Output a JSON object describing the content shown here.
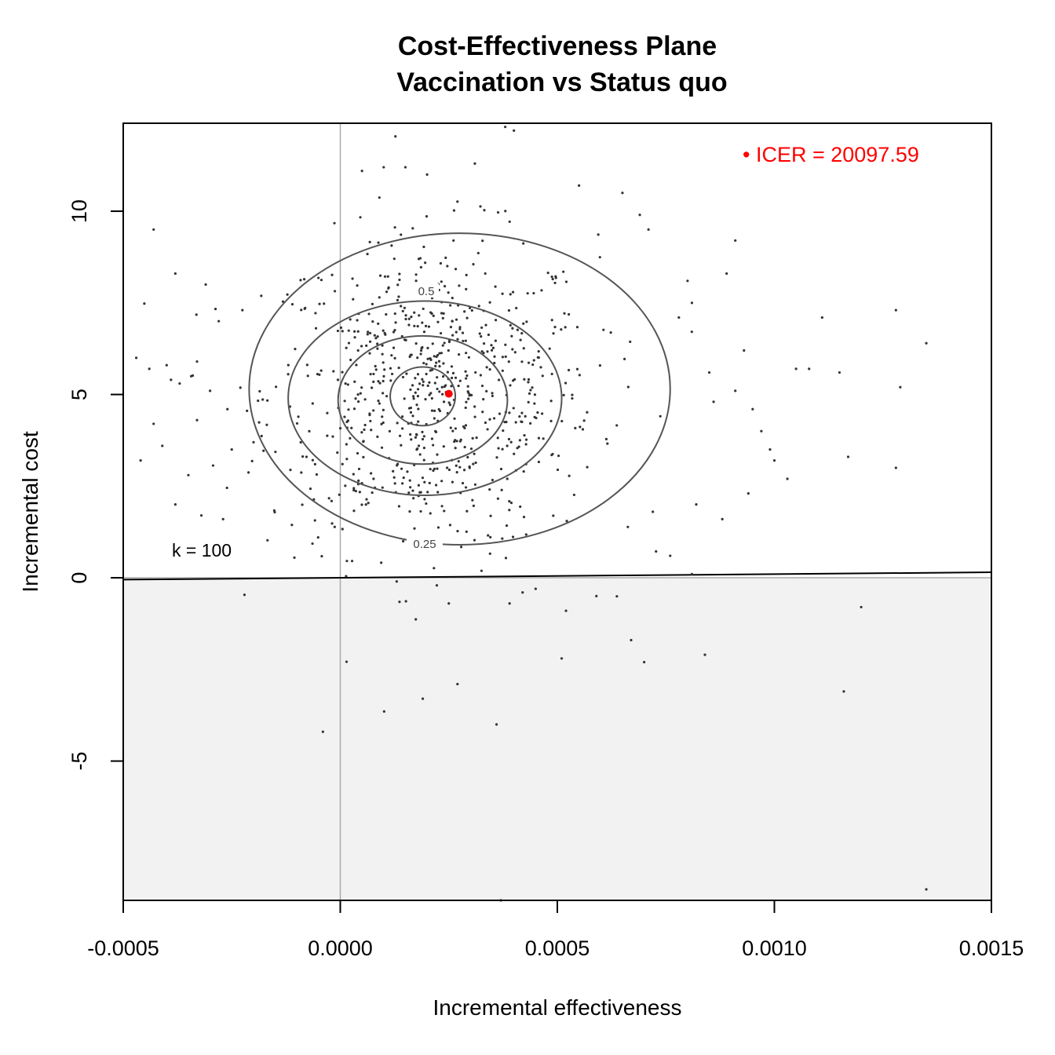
{
  "chart_data": {
    "type": "scatter",
    "title": "Cost-Effectiveness Plane",
    "subtitle": "Vaccination vs Status quo",
    "xlabel": "Incremental effectiveness",
    "ylabel": "Incremental cost",
    "xlim": [
      -0.0005,
      0.0015
    ],
    "ylim": [
      -8.8,
      12.4
    ],
    "x_ticks": [
      -0.0005,
      0.0,
      0.0005,
      0.001,
      0.0015
    ],
    "x_tick_labels": [
      "-0.0005",
      "0.0000",
      "0.0005",
      "0.0010",
      "0.0015"
    ],
    "y_ticks": [
      -5,
      0,
      5,
      10
    ],
    "y_tick_labels": [
      "-5",
      "0",
      "5",
      "10"
    ],
    "icer_label": "• ICER = 20097.59",
    "icer_point": {
      "x": 0.00025,
      "y": 5.02
    },
    "willingness_to_pay_label": "k = 100",
    "willingness_to_pay_line": {
      "slope": 100,
      "intercept": 0
    },
    "contour_labels": [
      "0.5",
      "0.25"
    ],
    "contours": [
      {
        "level": "inner",
        "cx": 0.00019,
        "cy": 4.95,
        "rx": 7.5e-05,
        "ry": 0.8
      },
      {
        "level": "0.5_inner",
        "cx": 0.00019,
        "cy": 4.85,
        "rx": 0.000195,
        "ry": 1.75
      },
      {
        "level": "0.5",
        "cx": 0.000195,
        "cy": 4.9,
        "rx": 0.000315,
        "ry": 2.65
      },
      {
        "level": "0.25",
        "cx": 0.000275,
        "cy": 5.15,
        "rx": 0.000485,
        "ry": 4.25
      }
    ],
    "shaded_region": "cost below 0",
    "reference_lines": {
      "x": 0.0,
      "y": 0.0
    },
    "point_color": "#333333",
    "icer_color": "#ff0000",
    "line_color": "#555555",
    "shade_color": "#f2f2f2",
    "grid": false,
    "outlier_points": [
      {
        "x": -0.00047,
        "y": 6.0
      },
      {
        "x": -0.00046,
        "y": 3.2
      },
      {
        "x": -0.00043,
        "y": 9.5
      },
      {
        "x": -0.00044,
        "y": 5.7
      },
      {
        "x": -0.00043,
        "y": 4.2
      },
      {
        "x": -0.00041,
        "y": 3.6
      },
      {
        "x": -0.0004,
        "y": 5.8
      },
      {
        "x": -0.00039,
        "y": 5.4
      },
      {
        "x": -0.00038,
        "y": 8.3
      },
      {
        "x": -0.00038,
        "y": 2.0
      },
      {
        "x": -0.00037,
        "y": 5.3
      },
      {
        "x": -0.00035,
        "y": 2.8
      },
      {
        "x": -0.00033,
        "y": 5.9
      },
      {
        "x": -0.00033,
        "y": 4.3
      },
      {
        "x": -0.00032,
        "y": 1.7
      },
      {
        "x": -0.00031,
        "y": 8.0
      },
      {
        "x": -0.0003,
        "y": 5.1
      },
      {
        "x": -0.00028,
        "y": 7.0
      },
      {
        "x": -0.00027,
        "y": 1.6
      },
      {
        "x": -0.00026,
        "y": 4.6
      },
      {
        "x": -0.00025,
        "y": 3.5
      },
      {
        "x": 5e-05,
        "y": 11.1
      },
      {
        "x": 0.0001,
        "y": 11.2
      },
      {
        "x": 0.00015,
        "y": 11.2
      },
      {
        "x": 0.0002,
        "y": 11.0
      },
      {
        "x": 0.00031,
        "y": 11.3
      },
      {
        "x": 0.00038,
        "y": 12.3
      },
      {
        "x": 0.0004,
        "y": 12.2
      },
      {
        "x": 0.00055,
        "y": 10.7
      },
      {
        "x": 0.00065,
        "y": 10.5
      },
      {
        "x": 0.00069,
        "y": 9.9
      },
      {
        "x": 0.00071,
        "y": 9.5
      },
      {
        "x": 0.00078,
        "y": 7.1
      },
      {
        "x": 0.0008,
        "y": 8.1
      },
      {
        "x": 0.00081,
        "y": 7.5
      },
      {
        "x": 0.00085,
        "y": 5.6
      },
      {
        "x": 0.00086,
        "y": 4.8
      },
      {
        "x": 0.00089,
        "y": 8.3
      },
      {
        "x": 0.00091,
        "y": 9.2
      },
      {
        "x": 0.00091,
        "y": 5.1
      },
      {
        "x": 0.00093,
        "y": 6.2
      },
      {
        "x": 0.00094,
        "y": 2.3
      },
      {
        "x": 0.00095,
        "y": 4.6
      },
      {
        "x": 0.00097,
        "y": 4.0
      },
      {
        "x": 0.00099,
        "y": 3.5
      },
      {
        "x": 0.001,
        "y": 3.2
      },
      {
        "x": 0.00103,
        "y": 2.7
      },
      {
        "x": 0.00105,
        "y": 5.7
      },
      {
        "x": 0.00108,
        "y": 5.7
      },
      {
        "x": 0.00111,
        "y": 7.1
      },
      {
        "x": 0.00115,
        "y": 5.6
      },
      {
        "x": 0.00117,
        "y": 3.3
      },
      {
        "x": 0.00128,
        "y": 7.3
      },
      {
        "x": 0.00128,
        "y": 3.0
      },
      {
        "x": 0.00129,
        "y": 5.2
      },
      {
        "x": 0.00135,
        "y": 6.4
      },
      {
        "x": 0.00081,
        "y": 0.1
      },
      {
        "x": 0.00076,
        "y": 0.6
      },
      {
        "x": 0.00082,
        "y": 2.0
      },
      {
        "x": 0.00088,
        "y": 1.6
      },
      {
        "x": 0.00072,
        "y": 1.8
      },
      {
        "x": 0.00013,
        "y": -0.1
      },
      {
        "x": 0.00025,
        "y": -0.7
      },
      {
        "x": 0.00039,
        "y": -0.7
      },
      {
        "x": 0.00042,
        "y": -0.4
      },
      {
        "x": 0.00045,
        "y": -0.3
      },
      {
        "x": 0.00052,
        "y": -0.9
      },
      {
        "x": 0.00059,
        "y": -0.5
      },
      {
        "x": 0.00067,
        "y": -1.7
      },
      {
        "x": 0.0007,
        "y": -2.3
      },
      {
        "x": 0.00051,
        "y": -2.2
      },
      {
        "x": 0.00084,
        "y": -2.1
      },
      {
        "x": 0.0012,
        "y": -0.8
      },
      {
        "x": 0.00116,
        "y": -3.1
      },
      {
        "x": 0.00027,
        "y": -2.9
      },
      {
        "x": 0.00019,
        "y": -3.3
      },
      {
        "x": 0.00036,
        "y": -4.0
      },
      {
        "x": -4e-05,
        "y": -4.2
      },
      {
        "x": 0.00037,
        "y": -8.8
      },
      {
        "x": 0.00135,
        "y": -8.5
      }
    ]
  }
}
